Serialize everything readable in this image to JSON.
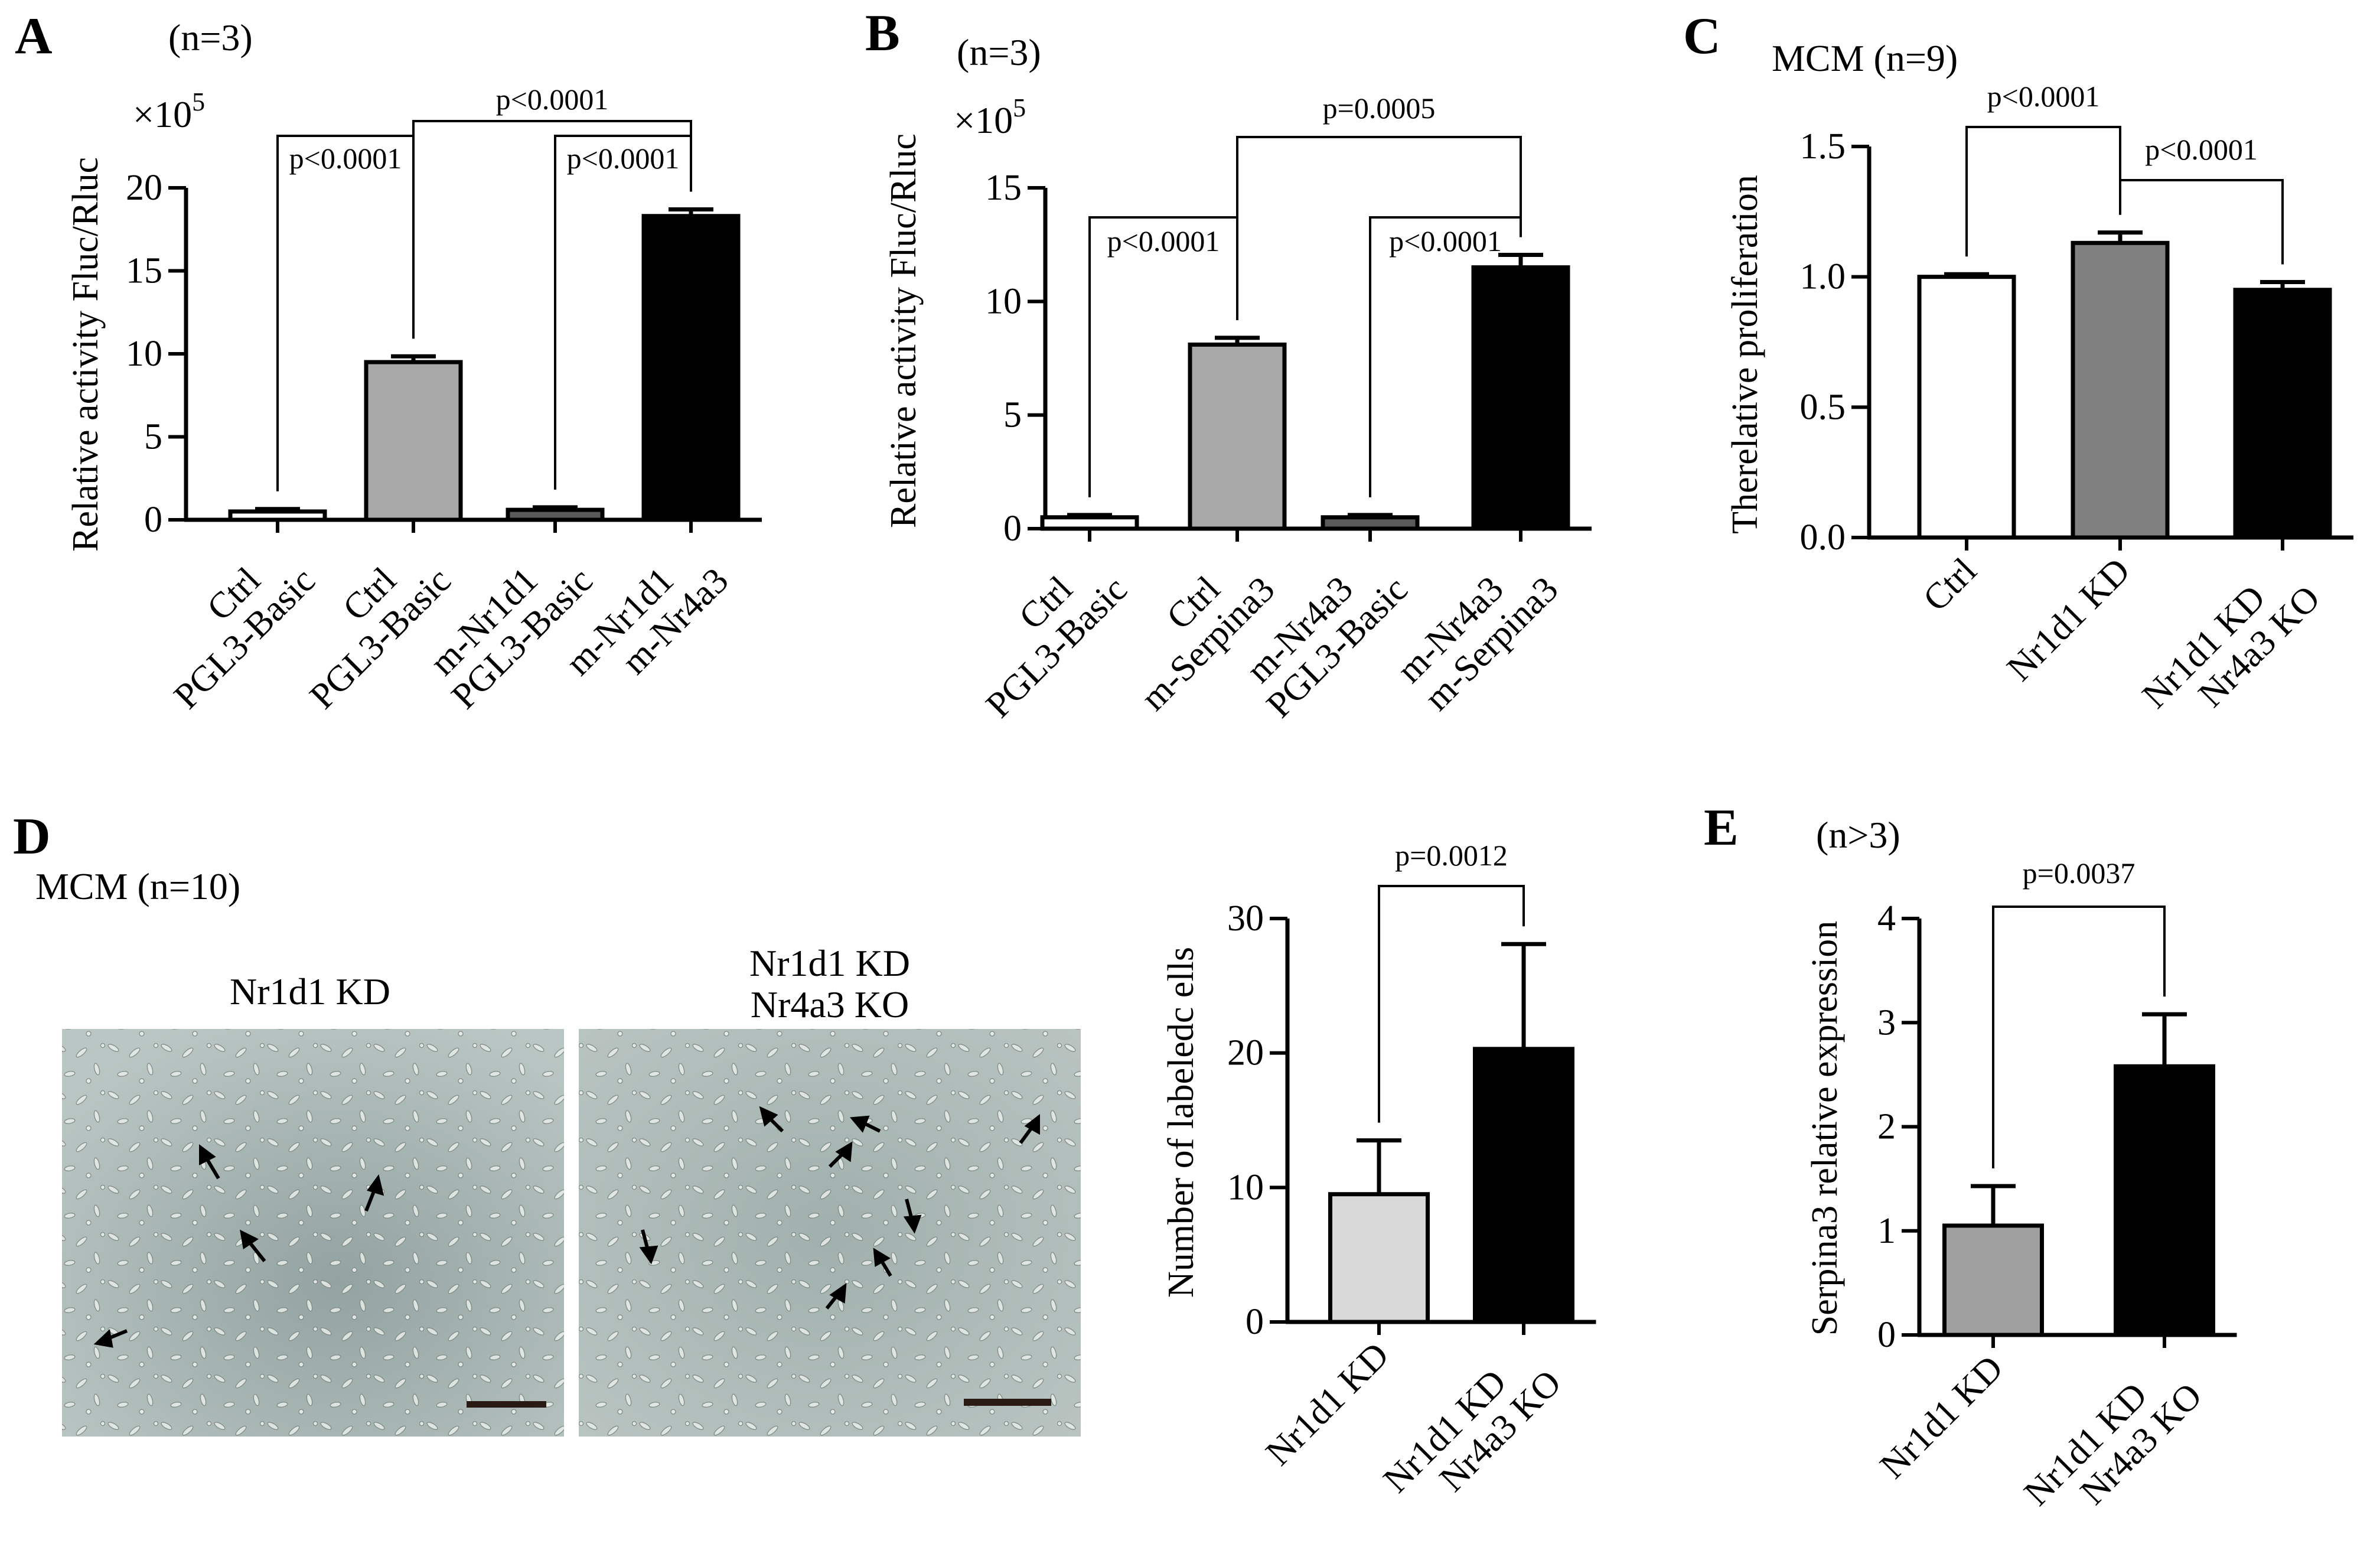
{
  "figure": {
    "panelD": {
      "letter": "D",
      "subtitle": "MCM (n=10)",
      "left_image_label": "Nr1d1 KD",
      "right_image_label": [
        "Nr1d1 KD",
        "Nr4a3 KO"
      ]
    }
  },
  "chart_data": [
    {
      "id": "A",
      "type": "bar",
      "panel": "A",
      "n_label": "(n=3)",
      "multiplier": "×10",
      "multiplier_exp": "5",
      "ylabel": "Relative activity Fluc/Rluc",
      "ylim": [
        0,
        20
      ],
      "yticks": [
        0,
        5,
        10,
        15,
        20
      ],
      "categories": [
        [
          "Ctrl",
          "PGL3-Basic"
        ],
        [
          "Ctrl",
          "PGL3-Basic"
        ],
        [
          "m-Nr1d1",
          "PGL3-Basic"
        ],
        [
          "m-Nr1d1",
          "m-Nr4a3"
        ]
      ],
      "values": [
        0.5,
        9.5,
        0.6,
        18.3
      ],
      "errors": [
        0.15,
        0.35,
        0.15,
        0.4
      ],
      "colors": [
        "#ffffff",
        "#a8a8a8",
        "#5a5a5a",
        "#000000"
      ],
      "comparisons": [
        {
          "from": 0,
          "to": 1,
          "label": "p<0.0001",
          "level": 1
        },
        {
          "from": 2,
          "to": 3,
          "label": "p<0.0001",
          "level": 1
        },
        {
          "from": 1,
          "to": 3,
          "label": "p<0.0001",
          "level": 2
        }
      ]
    },
    {
      "id": "B",
      "type": "bar",
      "panel": "B",
      "n_label": "(n=3)",
      "multiplier": "×10",
      "multiplier_exp": "5",
      "ylabel": "Relative activity Fluc/Rluc",
      "ylim": [
        0,
        15
      ],
      "yticks": [
        0,
        5,
        10,
        15
      ],
      "categories": [
        [
          "Ctrl",
          "PGL3-Basic"
        ],
        [
          "Ctrl",
          "m-Serpina3"
        ],
        [
          "m-Nr4a3",
          "PGL3-Basic"
        ],
        [
          "m-Nr4a3",
          "m-Serpina3"
        ]
      ],
      "values": [
        0.5,
        8.1,
        0.5,
        11.5
      ],
      "errors": [
        0.1,
        0.3,
        0.1,
        0.55
      ],
      "colors": [
        "#ffffff",
        "#a8a8a8",
        "#5a5a5a",
        "#000000"
      ],
      "comparisons": [
        {
          "from": 0,
          "to": 1,
          "label": "p<0.0001",
          "level": 1
        },
        {
          "from": 2,
          "to": 3,
          "label": "p<0.0001",
          "level": 1
        },
        {
          "from": 1,
          "to": 3,
          "label": "p=0.0005",
          "level": 2
        }
      ]
    },
    {
      "id": "C",
      "type": "bar",
      "panel": "C",
      "n_label": "MCM (n=9)",
      "ylabel": "Therelative proliferation",
      "ylim": [
        0,
        1.5
      ],
      "yticks": [
        "0.0",
        "0.5",
        "1.0",
        "1.5"
      ],
      "categories": [
        [
          "Ctrl"
        ],
        [
          "Nr1d1 KD"
        ],
        [
          "Nr1d1 KD",
          "Nr4a3 KO"
        ]
      ],
      "values": [
        1.0,
        1.13,
        0.95
      ],
      "errors": [
        0.01,
        0.04,
        0.03
      ],
      "colors": [
        "#ffffff",
        "#808080",
        "#000000"
      ],
      "comparisons": [
        {
          "from": 0,
          "to": 1,
          "label": "p<0.0001",
          "level": 2
        },
        {
          "from": 1,
          "to": 2,
          "label": "p<0.0001",
          "level": 1
        }
      ]
    },
    {
      "id": "D",
      "type": "bar",
      "panel": "D",
      "ylabel": "Number of labeledc ells",
      "ylim": [
        0,
        30
      ],
      "yticks": [
        0,
        10,
        20,
        30
      ],
      "categories": [
        [
          "Nr1d1 KD"
        ],
        [
          "Nr1d1 KD",
          "Nr4a3 KO"
        ]
      ],
      "values": [
        9.5,
        20.3
      ],
      "errors": [
        4.0,
        7.8
      ],
      "colors": [
        "#d8d8d8",
        "#000000"
      ],
      "comparisons": [
        {
          "from": 0,
          "to": 1,
          "label": "p=0.0012",
          "level": 1
        }
      ]
    },
    {
      "id": "E",
      "type": "bar",
      "panel": "E",
      "n_label": "(n>3)",
      "ylabel": "Serpina3 relative expression",
      "ylim": [
        0,
        4
      ],
      "yticks": [
        0,
        1,
        2,
        3,
        4
      ],
      "categories": [
        [
          "Nr1d1 KD"
        ],
        [
          "Nr1d1 KD",
          "Nr4a3 KO"
        ]
      ],
      "values": [
        1.05,
        2.58
      ],
      "errors": [
        0.38,
        0.5
      ],
      "colors": [
        "#a0a0a0",
        "#000000"
      ],
      "comparisons": [
        {
          "from": 0,
          "to": 1,
          "label": "p=0.0037",
          "level": 1
        }
      ]
    }
  ]
}
